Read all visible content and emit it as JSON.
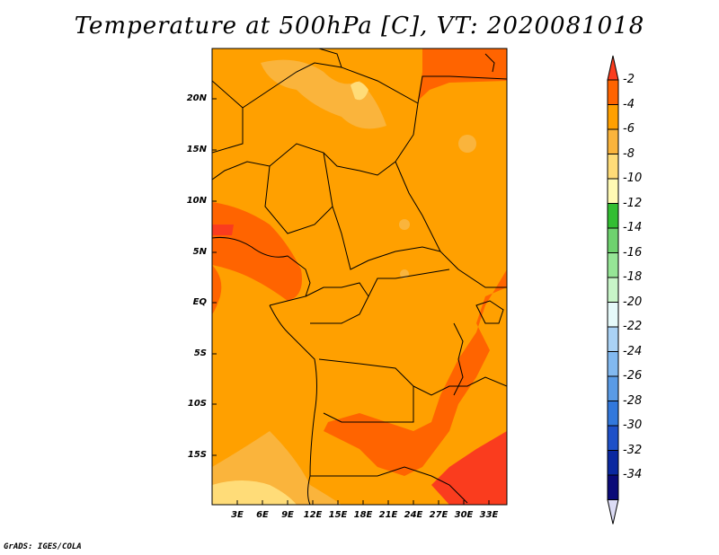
{
  "title": "Temperature at 500hPa [C], VT: 2020081018",
  "credit": "GrADS: IGES/COLA",
  "lat_labels": [
    "20N",
    "15N",
    "10N",
    "5N",
    "EQ",
    "5S",
    "10S",
    "15S"
  ],
  "lon_labels": [
    "3E",
    "6E",
    "9E",
    "12E",
    "15E",
    "18E",
    "21E",
    "24E",
    "27E",
    "30E",
    "33E"
  ],
  "colorbar": {
    "labels": [
      "-2",
      "-4",
      "-6",
      "-8",
      "-10",
      "-12",
      "-14",
      "-16",
      "-18",
      "-20",
      "-22",
      "-24",
      "-26",
      "-28",
      "-30",
      "-32",
      "-34"
    ],
    "colors": [
      "#fa3c1e",
      "#ff6400",
      "#ffa000",
      "#fab43c",
      "#ffdc78",
      "#fffab4",
      "#32be32",
      "#6ed26e",
      "#96e696",
      "#c8f5c8",
      "#e6fafa",
      "#aad2f5",
      "#82b9f0",
      "#5a9be6",
      "#3278dc",
      "#1e50c8",
      "#0a28a0",
      "#0a0a78",
      "#dcdcf5"
    ]
  },
  "colors": {
    "field_main": "#ffa000",
    "field_warm": "#ff6400",
    "field_warmer": "#fa3c1e",
    "field_cool": "#fab43c",
    "field_cooler": "#ffdc78"
  }
}
